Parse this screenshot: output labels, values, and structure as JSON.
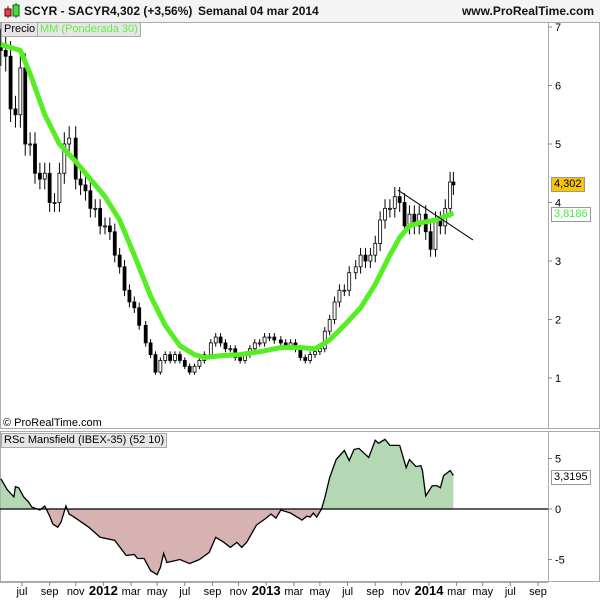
{
  "header": {
    "symbol_title": "SCYR - SACYR",
    "quote": "4,302 (+3,56%)",
    "period": "Semanal",
    "date": "04 mar 2014",
    "website": "www.ProRealTime.com",
    "icon": "candlestick-icon"
  },
  "legend": {
    "price": "Precio",
    "ma": "MM (Ponderada 30)"
  },
  "copyright": "© ProRealTime.com",
  "price_tags": {
    "last": "4,302",
    "ma": "3,8186"
  },
  "rsc_tag": "3,3195",
  "colors": {
    "ma": "#55ee22",
    "positive_fill": "#b4d8b4",
    "negative_fill": "#d6b2b2",
    "last_tag": "#f7c600",
    "ma_text": "#44ee44"
  },
  "x_axis": {
    "ticks": [
      {
        "label": "jul",
        "year": 2011.5
      },
      {
        "label": "sep",
        "year": 2011.67
      },
      {
        "label": "nov",
        "year": 2011.83
      },
      {
        "label": "2012",
        "year": 2012.0,
        "bold": true
      },
      {
        "label": "mar",
        "year": 2012.17
      },
      {
        "label": "may",
        "year": 2012.33
      },
      {
        "label": "jul",
        "year": 2012.5
      },
      {
        "label": "sep",
        "year": 2012.67
      },
      {
        "label": "nov",
        "year": 2012.83
      },
      {
        "label": "2013",
        "year": 2013.0,
        "bold": true
      },
      {
        "label": "mar",
        "year": 2013.17
      },
      {
        "label": "may",
        "year": 2013.33
      },
      {
        "label": "jul",
        "year": 2013.5
      },
      {
        "label": "sep",
        "year": 2013.67
      },
      {
        "label": "nov",
        "year": 2013.83
      },
      {
        "label": "2014",
        "year": 2014.0,
        "bold": true
      },
      {
        "label": "mar",
        "year": 2014.17
      },
      {
        "label": "may",
        "year": 2014.33
      },
      {
        "label": "jul",
        "year": 2014.5
      },
      {
        "label": "sep",
        "year": 2014.67
      }
    ]
  },
  "chart_data": [
    {
      "type": "candlestick",
      "title": "SCYR - SACYR",
      "y_ticks": [
        "1",
        "2",
        "3",
        "4",
        "5",
        "6",
        "7"
      ],
      "ylim": [
        0.15,
        7.1
      ],
      "series": [
        {
          "name": "Precio",
          "type": "candlestick",
          "closes": [
            [
              2011.37,
              6.6
            ],
            [
              2011.4,
              6.5
            ],
            [
              2011.43,
              5.6
            ],
            [
              2011.46,
              5.5
            ],
            [
              2011.49,
              6.3
            ],
            [
              2011.52,
              5.0
            ],
            [
              2011.55,
              5.0
            ],
            [
              2011.58,
              4.5
            ],
            [
              2011.61,
              4.4
            ],
            [
              2011.64,
              4.5
            ],
            [
              2011.67,
              4.0
            ],
            [
              2011.7,
              4.0
            ],
            [
              2011.73,
              4.5
            ],
            [
              2011.76,
              5.0
            ],
            [
              2011.79,
              5.1
            ],
            [
              2011.83,
              4.4
            ],
            [
              2011.86,
              4.3
            ],
            [
              2011.89,
              4.2
            ],
            [
              2011.92,
              3.9
            ],
            [
              2011.95,
              3.9
            ],
            [
              2011.98,
              3.6
            ],
            [
              2012.01,
              3.6
            ],
            [
              2012.04,
              3.5
            ],
            [
              2012.07,
              3.1
            ],
            [
              2012.1,
              2.9
            ],
            [
              2012.13,
              2.5
            ],
            [
              2012.16,
              2.3
            ],
            [
              2012.19,
              2.2
            ],
            [
              2012.22,
              1.9
            ],
            [
              2012.26,
              1.6
            ],
            [
              2012.29,
              1.4
            ],
            [
              2012.32,
              1.1
            ],
            [
              2012.35,
              1.3
            ],
            [
              2012.38,
              1.4
            ],
            [
              2012.41,
              1.3
            ],
            [
              2012.44,
              1.4
            ],
            [
              2012.47,
              1.3
            ],
            [
              2012.5,
              1.2
            ],
            [
              2012.53,
              1.1
            ],
            [
              2012.56,
              1.2
            ],
            [
              2012.59,
              1.3
            ],
            [
              2012.62,
              1.4
            ],
            [
              2012.66,
              1.6
            ],
            [
              2012.69,
              1.7
            ],
            [
              2012.72,
              1.6
            ],
            [
              2012.75,
              1.5
            ],
            [
              2012.78,
              1.5
            ],
            [
              2012.81,
              1.35
            ],
            [
              2012.84,
              1.3
            ],
            [
              2012.87,
              1.4
            ],
            [
              2012.9,
              1.5
            ],
            [
              2012.93,
              1.6
            ],
            [
              2012.96,
              1.6
            ],
            [
              2012.99,
              1.7
            ],
            [
              2013.02,
              1.7
            ],
            [
              2013.05,
              1.65
            ],
            [
              2013.09,
              1.6
            ],
            [
              2013.12,
              1.55
            ],
            [
              2013.15,
              1.6
            ],
            [
              2013.18,
              1.5
            ],
            [
              2013.21,
              1.35
            ],
            [
              2013.24,
              1.3
            ],
            [
              2013.27,
              1.4
            ],
            [
              2013.3,
              1.45
            ],
            [
              2013.33,
              1.5
            ],
            [
              2013.36,
              1.8
            ],
            [
              2013.39,
              2.0
            ],
            [
              2013.42,
              2.3
            ],
            [
              2013.45,
              2.5
            ],
            [
              2013.48,
              2.5
            ],
            [
              2013.51,
              2.8
            ],
            [
              2013.55,
              2.9
            ],
            [
              2013.58,
              3.1
            ],
            [
              2013.61,
              3.0
            ],
            [
              2013.64,
              3.1
            ],
            [
              2013.67,
              3.3
            ],
            [
              2013.7,
              3.7
            ],
            [
              2013.73,
              3.9
            ],
            [
              2013.76,
              3.9
            ],
            [
              2013.79,
              4.1
            ],
            [
              2013.82,
              4.0
            ],
            [
              2013.85,
              3.6
            ],
            [
              2013.88,
              3.8
            ],
            [
              2013.91,
              3.6
            ],
            [
              2013.94,
              3.8
            ],
            [
              2013.98,
              3.5
            ],
            [
              2014.01,
              3.2
            ],
            [
              2014.04,
              3.7
            ],
            [
              2014.07,
              3.6
            ],
            [
              2014.1,
              3.9
            ],
            [
              2014.13,
              4.35
            ],
            [
              2014.15,
              4.302
            ]
          ]
        },
        {
          "name": "MM (Ponderada 30)",
          "type": "line",
          "points": [
            [
              2011.37,
              6.7
            ],
            [
              2011.49,
              6.6
            ],
            [
              2011.55,
              6.2
            ],
            [
              2011.64,
              5.5
            ],
            [
              2011.73,
              5.0
            ],
            [
              2011.83,
              4.7
            ],
            [
              2011.92,
              4.4
            ],
            [
              2012.01,
              4.1
            ],
            [
              2012.1,
              3.7
            ],
            [
              2012.19,
              3.1
            ],
            [
              2012.29,
              2.4
            ],
            [
              2012.38,
              1.9
            ],
            [
              2012.47,
              1.55
            ],
            [
              2012.56,
              1.4
            ],
            [
              2012.62,
              1.35
            ],
            [
              2012.72,
              1.38
            ],
            [
              2012.84,
              1.4
            ],
            [
              2012.96,
              1.45
            ],
            [
              2013.09,
              1.52
            ],
            [
              2013.21,
              1.52
            ],
            [
              2013.3,
              1.5
            ],
            [
              2013.39,
              1.65
            ],
            [
              2013.48,
              1.9
            ],
            [
              2013.58,
              2.2
            ],
            [
              2013.67,
              2.6
            ],
            [
              2013.76,
              3.1
            ],
            [
              2013.82,
              3.4
            ],
            [
              2013.88,
              3.6
            ],
            [
              2013.94,
              3.65
            ],
            [
              2014.04,
              3.7
            ],
            [
              2014.15,
              3.8186
            ]
          ]
        }
      ],
      "trendline": [
        [
          2013.81,
          4.21
        ],
        [
          2014.27,
          3.36
        ]
      ]
    },
    {
      "type": "area",
      "title": "RSc Mansfield (IBEX-35) (52 10)",
      "y_ticks": [
        "-5",
        "0",
        "5"
      ],
      "ylim": [
        -7.3,
        7.6
      ],
      "series": [
        {
          "name": "RSc Mansfield (IBEX-35) (52 10)",
          "points": [
            [
              2011.37,
              3.0
            ],
            [
              2011.41,
              1.9
            ],
            [
              2011.45,
              1.2
            ],
            [
              2011.46,
              2.2
            ],
            [
              2011.48,
              2.1
            ],
            [
              2011.51,
              1.2
            ],
            [
              2011.54,
              0.7
            ],
            [
              2011.56,
              0.2
            ],
            [
              2011.61,
              -0.1
            ],
            [
              2011.64,
              0.3
            ],
            [
              2011.67,
              -0.7
            ],
            [
              2011.69,
              -1.5
            ],
            [
              2011.72,
              -1.8
            ],
            [
              2011.74,
              -1.3
            ],
            [
              2011.77,
              0.3
            ],
            [
              2011.79,
              -0.5
            ],
            [
              2011.82,
              -0.8
            ],
            [
              2011.91,
              -1.8
            ],
            [
              2011.98,
              -2.8
            ],
            [
              2012.07,
              -3.1
            ],
            [
              2012.14,
              -4.6
            ],
            [
              2012.19,
              -4.5
            ],
            [
              2012.21,
              -4.9
            ],
            [
              2012.25,
              -4.9
            ],
            [
              2012.29,
              -6.1
            ],
            [
              2012.33,
              -6.5
            ],
            [
              2012.35,
              -5.8
            ],
            [
              2012.37,
              -4.4
            ],
            [
              2012.39,
              -5.3
            ],
            [
              2012.47,
              -5.0
            ],
            [
              2012.53,
              -5.4
            ],
            [
              2012.59,
              -5.0
            ],
            [
              2012.65,
              -4.3
            ],
            [
              2012.69,
              -2.8
            ],
            [
              2012.74,
              -3.3
            ],
            [
              2012.78,
              -3.8
            ],
            [
              2012.82,
              -3.3
            ],
            [
              2012.85,
              -3.8
            ],
            [
              2012.88,
              -3.3
            ],
            [
              2012.94,
              -1.6
            ],
            [
              2013.0,
              -0.9
            ],
            [
              2013.03,
              -0.5
            ],
            [
              2013.06,
              -0.9
            ],
            [
              2013.09,
              -0.1
            ],
            [
              2013.15,
              -0.4
            ],
            [
              2013.22,
              -1.1
            ],
            [
              2013.25,
              -0.7
            ],
            [
              2013.27,
              -0.8
            ],
            [
              2013.29,
              -0.4
            ],
            [
              2013.31,
              -0.8
            ],
            [
              2013.34,
              0.0
            ],
            [
              2013.36,
              1.1
            ],
            [
              2013.39,
              3.1
            ],
            [
              2013.43,
              4.9
            ],
            [
              2013.48,
              5.8
            ],
            [
              2013.51,
              4.8
            ],
            [
              2013.54,
              5.9
            ],
            [
              2013.57,
              6.0
            ],
            [
              2013.63,
              5.1
            ],
            [
              2013.67,
              6.8
            ],
            [
              2013.69,
              6.5
            ],
            [
              2013.73,
              6.9
            ],
            [
              2013.76,
              6.3
            ],
            [
              2013.82,
              6.3
            ],
            [
              2013.86,
              4.1
            ],
            [
              2013.88,
              4.9
            ],
            [
              2013.92,
              4.2
            ],
            [
              2013.95,
              4.3
            ],
            [
              2013.96,
              3.8
            ],
            [
              2013.98,
              1.3
            ],
            [
              2014.02,
              2.3
            ],
            [
              2014.05,
              2.3
            ],
            [
              2014.07,
              2.1
            ],
            [
              2014.09,
              3.3
            ],
            [
              2014.13,
              3.8
            ],
            [
              2014.15,
              3.3195
            ]
          ]
        }
      ]
    }
  ]
}
